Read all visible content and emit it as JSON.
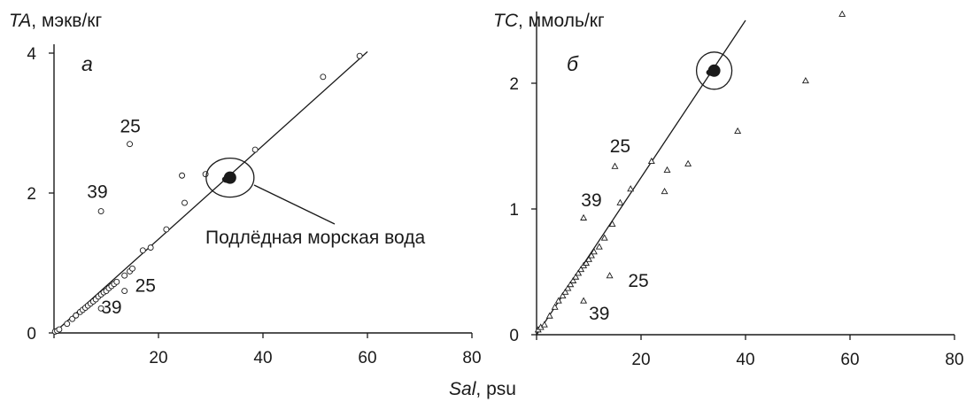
{
  "figure": {
    "xlabel_italic": "Sal",
    "xlabel_rest": ", psu",
    "callout_text": "Подлёдная морская вода"
  },
  "chart_data": [
    {
      "type": "scatter",
      "panel_letter": "а",
      "ylabel_italic": "TA",
      "ylabel_rest": ", мэкв/кг",
      "xlabel": "Sal, psu",
      "xlim": [
        0,
        80
      ],
      "ylim": [
        0,
        4
      ],
      "xticks": [
        0,
        20,
        40,
        60,
        80
      ],
      "yticks": [
        0,
        2,
        4
      ],
      "grid": false,
      "marker": "circle",
      "points": [
        {
          "x": 0.2,
          "y": 0.02
        },
        {
          "x": 0.6,
          "y": 0.03
        },
        {
          "x": 1.0,
          "y": 0.05
        },
        {
          "x": 2.5,
          "y": 0.13
        },
        {
          "x": 3.5,
          "y": 0.2
        },
        {
          "x": 4.2,
          "y": 0.25
        },
        {
          "x": 5.0,
          "y": 0.3
        },
        {
          "x": 5.5,
          "y": 0.33
        },
        {
          "x": 6.0,
          "y": 0.36
        },
        {
          "x": 6.5,
          "y": 0.39
        },
        {
          "x": 7.0,
          "y": 0.42
        },
        {
          "x": 7.5,
          "y": 0.45
        },
        {
          "x": 8.0,
          "y": 0.48
        },
        {
          "x": 8.5,
          "y": 0.52
        },
        {
          "x": 9.0,
          "y": 0.55
        },
        {
          "x": 9.5,
          "y": 0.58
        },
        {
          "x": 10.0,
          "y": 0.6
        },
        {
          "x": 10.5,
          "y": 0.64
        },
        {
          "x": 11.0,
          "y": 0.67
        },
        {
          "x": 11.5,
          "y": 0.7
        },
        {
          "x": 12.0,
          "y": 0.73
        },
        {
          "x": 13.5,
          "y": 0.82
        },
        {
          "x": 14.5,
          "y": 0.88
        },
        {
          "x": 15.0,
          "y": 0.92
        },
        {
          "x": 17.0,
          "y": 1.18
        },
        {
          "x": 18.5,
          "y": 1.22
        },
        {
          "x": 21.5,
          "y": 1.48
        },
        {
          "x": 25.0,
          "y": 1.86
        },
        {
          "x": 24.5,
          "y": 2.25
        },
        {
          "x": 29.0,
          "y": 2.27
        },
        {
          "x": 38.5,
          "y": 2.62
        },
        {
          "x": 51.5,
          "y": 3.66
        },
        {
          "x": 58.5,
          "y": 3.96
        },
        {
          "x": 14.5,
          "y": 2.7
        },
        {
          "x": 9.0,
          "y": 1.74
        },
        {
          "x": 13.5,
          "y": 0.6
        },
        {
          "x": 9.0,
          "y": 0.35
        }
      ],
      "cluster": {
        "x": 33.7,
        "y": 2.22
      },
      "regression": {
        "x": [
          0,
          60
        ],
        "y": [
          0,
          4.02
        ]
      },
      "annotations": [
        {
          "text": "25",
          "x": 14.6,
          "y": 2.87
        },
        {
          "text": "39",
          "x": 8.3,
          "y": 1.93
        },
        {
          "text": "25",
          "x": 17.5,
          "y": 0.59
        },
        {
          "text": "39",
          "x": 11.0,
          "y": 0.28
        }
      ]
    },
    {
      "type": "scatter",
      "panel_letter": "б",
      "ylabel_italic": "TC",
      "ylabel_rest": ", ммоль/кг",
      "xlabel": "Sal, psu",
      "xlim": [
        0,
        80
      ],
      "ylim": [
        0,
        2.5
      ],
      "xticks": [
        0,
        20,
        40,
        60,
        80
      ],
      "yticks": [
        0,
        1,
        2
      ],
      "grid": false,
      "marker": "triangle",
      "points": [
        {
          "x": 0.3,
          "y": 0.04
        },
        {
          "x": 0.8,
          "y": 0.06
        },
        {
          "x": 1.5,
          "y": 0.08
        },
        {
          "x": 2.5,
          "y": 0.15
        },
        {
          "x": 3.5,
          "y": 0.22
        },
        {
          "x": 4.2,
          "y": 0.27
        },
        {
          "x": 5.0,
          "y": 0.31
        },
        {
          "x": 5.5,
          "y": 0.34
        },
        {
          "x": 6.0,
          "y": 0.37
        },
        {
          "x": 6.5,
          "y": 0.4
        },
        {
          "x": 7.0,
          "y": 0.43
        },
        {
          "x": 7.5,
          "y": 0.46
        },
        {
          "x": 8.0,
          "y": 0.49
        },
        {
          "x": 8.5,
          "y": 0.52
        },
        {
          "x": 9.0,
          "y": 0.55
        },
        {
          "x": 9.5,
          "y": 0.57
        },
        {
          "x": 10.0,
          "y": 0.6
        },
        {
          "x": 10.5,
          "y": 0.63
        },
        {
          "x": 11.0,
          "y": 0.66
        },
        {
          "x": 12.0,
          "y": 0.7
        },
        {
          "x": 13.0,
          "y": 0.77
        },
        {
          "x": 14.5,
          "y": 0.88
        },
        {
          "x": 16.0,
          "y": 1.05
        },
        {
          "x": 18.0,
          "y": 1.16
        },
        {
          "x": 22.0,
          "y": 1.38
        },
        {
          "x": 24.5,
          "y": 1.14
        },
        {
          "x": 25.0,
          "y": 1.31
        },
        {
          "x": 29.0,
          "y": 1.36
        },
        {
          "x": 38.5,
          "y": 1.62
        },
        {
          "x": 51.5,
          "y": 2.02
        },
        {
          "x": 58.5,
          "y": 2.55
        },
        {
          "x": 15.0,
          "y": 1.34
        },
        {
          "x": 9.0,
          "y": 0.93
        },
        {
          "x": 14.0,
          "y": 0.47
        },
        {
          "x": 9.0,
          "y": 0.27
        }
      ],
      "cluster": {
        "x": 34.0,
        "y": 2.1
      },
      "regression": {
        "x": [
          0,
          40
        ],
        "y": [
          0,
          2.5
        ]
      },
      "annotations": [
        {
          "text": "25",
          "x": 16.0,
          "y": 1.45
        },
        {
          "text": "39",
          "x": 10.5,
          "y": 1.02
        },
        {
          "text": "25",
          "x": 19.5,
          "y": 0.38
        },
        {
          "text": "39",
          "x": 12.0,
          "y": 0.12
        }
      ]
    }
  ]
}
